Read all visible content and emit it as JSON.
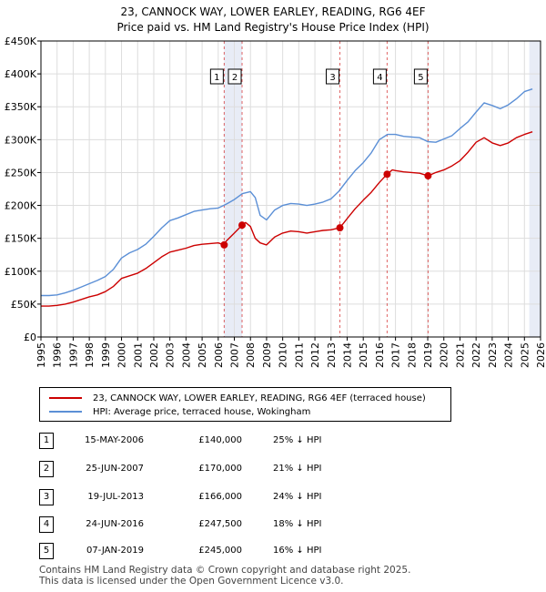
{
  "title_line1": "23, CANNOCK WAY, LOWER EARLEY, READING, RG6 4EF",
  "title_line2": "Price paid vs. HM Land Registry's House Price Index (HPI)",
  "legend": {
    "property": "23, CANNOCK WAY, LOWER EARLEY, READING, RG6 4EF (terraced house)",
    "hpi": "HPI: Average price, terraced house, Wokingham"
  },
  "transactions": [
    {
      "num": "1",
      "date": "15-MAY-2006",
      "price": "£140,000",
      "hpi": "25% ↓ HPI"
    },
    {
      "num": "2",
      "date": "25-JUN-2007",
      "price": "£170,000",
      "hpi": "21% ↓ HPI"
    },
    {
      "num": "3",
      "date": "19-JUL-2013",
      "price": "£166,000",
      "hpi": "24% ↓ HPI"
    },
    {
      "num": "4",
      "date": "24-JUN-2016",
      "price": "£247,500",
      "hpi": "18% ↓ HPI"
    },
    {
      "num": "5",
      "date": "07-JAN-2019",
      "price": "£245,000",
      "hpi": "16% ↓ HPI"
    }
  ],
  "footer_line1": "Contains HM Land Registry data © Crown copyright and database right 2025.",
  "footer_line2": "This data is licensed under the Open Government Licence v3.0.",
  "colors": {
    "property": "#cc0000",
    "hpi": "#5b8fd6",
    "band": "#e8ecf6",
    "grid": "#dddddd"
  },
  "chart_data": {
    "type": "line",
    "title": "Price paid vs. HM Land Registry's House Price Index (HPI)",
    "xlim": [
      1995,
      2026
    ],
    "ylim": [
      0,
      450000
    ],
    "xticks": [
      "1995",
      "1996",
      "1997",
      "1998",
      "1999",
      "2000",
      "2001",
      "2002",
      "2003",
      "2004",
      "2005",
      "2006",
      "2007",
      "2008",
      "2009",
      "2010",
      "2011",
      "2012",
      "2013",
      "2014",
      "2015",
      "2016",
      "2017",
      "2018",
      "2019",
      "2020",
      "2021",
      "2022",
      "2023",
      "2024",
      "2025",
      "2026"
    ],
    "yticks": [
      {
        "value": 0,
        "label": "£0"
      },
      {
        "value": 50000,
        "label": "£50K"
      },
      {
        "value": 100000,
        "label": "£100K"
      },
      {
        "value": 150000,
        "label": "£150K"
      },
      {
        "value": 200000,
        "label": "£200K"
      },
      {
        "value": 250000,
        "label": "£250K"
      },
      {
        "value": 300000,
        "label": "£300K"
      },
      {
        "value": 350000,
        "label": "£350K"
      },
      {
        "value": 400000,
        "label": "£400K"
      },
      {
        "value": 450000,
        "label": "£450K"
      }
    ],
    "shaded_regions": [
      [
        2006.37,
        2007.48
      ],
      [
        2025.3,
        2026
      ]
    ],
    "sales": [
      {
        "num": "1",
        "x": 2006.37,
        "y": 140000
      },
      {
        "num": "2",
        "x": 2007.48,
        "y": 170000
      },
      {
        "num": "3",
        "x": 2013.55,
        "y": 166000
      },
      {
        "num": "4",
        "x": 2016.48,
        "y": 247500
      },
      {
        "num": "5",
        "x": 2019.02,
        "y": 245000
      }
    ],
    "series": [
      {
        "name": "HPI: Average price, terraced house, Wokingham",
        "x": [
          1995,
          1995.5,
          1996,
          1996.5,
          1997,
          1997.5,
          1998,
          1998.5,
          1999,
          1999.5,
          2000,
          2000.5,
          2001,
          2001.5,
          2002,
          2002.5,
          2003,
          2003.5,
          2004,
          2004.5,
          2005,
          2005.5,
          2006,
          2006.5,
          2007,
          2007.5,
          2008,
          2008.3,
          2008.6,
          2009,
          2009.5,
          2010,
          2010.5,
          2011,
          2011.5,
          2012,
          2012.5,
          2013,
          2013.5,
          2014,
          2014.5,
          2015,
          2015.5,
          2016,
          2016.5,
          2017,
          2017.5,
          2018,
          2018.5,
          2019,
          2019.5,
          2020,
          2020.5,
          2021,
          2021.5,
          2022,
          2022.5,
          2023,
          2023.5,
          2024,
          2024.5,
          2025,
          2025.5
        ],
        "y": [
          63000,
          63000,
          64000,
          67000,
          71000,
          76000,
          81000,
          86000,
          92000,
          103000,
          120000,
          128000,
          133000,
          141000,
          153000,
          166000,
          177000,
          181000,
          186000,
          191000,
          193000,
          195000,
          196000,
          202000,
          209000,
          218000,
          221000,
          212000,
          185000,
          178000,
          193000,
          200000,
          203000,
          202000,
          200000,
          202000,
          205000,
          210000,
          222000,
          238000,
          253000,
          265000,
          280000,
          300000,
          308000,
          308000,
          305000,
          304000,
          303000,
          297000,
          296000,
          301000,
          306000,
          317000,
          327000,
          342000,
          356000,
          352000,
          347000,
          353000,
          362000,
          373000,
          377000
        ]
      },
      {
        "name": "23, CANNOCK WAY, LOWER EARLEY, READING, RG6 4EF (terraced house)",
        "x": [
          1995,
          1995.5,
          1996,
          1996.5,
          1997,
          1997.5,
          1998,
          1998.5,
          1999,
          1999.5,
          2000,
          2000.5,
          2001,
          2001.5,
          2002,
          2002.5,
          2003,
          2003.5,
          2004,
          2004.5,
          2005,
          2005.5,
          2006,
          2006.37,
          2006.5,
          2007,
          2007.48,
          2007.7,
          2008,
          2008.3,
          2008.6,
          2009,
          2009.5,
          2010,
          2010.5,
          2011,
          2011.5,
          2012,
          2012.5,
          2013,
          2013.55,
          2014,
          2014.5,
          2015,
          2015.5,
          2016,
          2016.48,
          2016.8,
          2017,
          2017.5,
          2018,
          2018.5,
          2019.02,
          2019.5,
          2020,
          2020.5,
          2021,
          2021.5,
          2022,
          2022.5,
          2023,
          2023.5,
          2024,
          2024.5,
          2025,
          2025.5
        ],
        "y": [
          47000,
          47000,
          48000,
          50000,
          53000,
          57000,
          61000,
          64000,
          69000,
          77000,
          89000,
          93000,
          97000,
          104000,
          113000,
          122000,
          129000,
          132000,
          135000,
          139000,
          141000,
          142000,
          143000,
          140000,
          146000,
          158000,
          170000,
          174000,
          168000,
          150000,
          143000,
          140000,
          152000,
          158000,
          161000,
          160000,
          158000,
          160000,
          162000,
          163000,
          166000,
          180000,
          195000,
          208000,
          220000,
          235000,
          247500,
          254000,
          253000,
          251000,
          250000,
          249000,
          245000,
          250000,
          254000,
          260000,
          268000,
          281000,
          296000,
          303000,
          295000,
          291000,
          295000,
          303000,
          308000,
          312000
        ]
      }
    ]
  }
}
